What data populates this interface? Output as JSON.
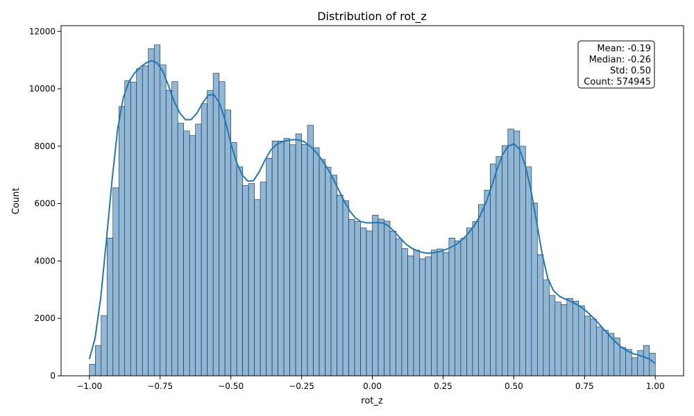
{
  "chart_data": {
    "type": "bar",
    "title": "Distribution of rot_z",
    "xlabel": "rot_z",
    "ylabel": "Count",
    "xlim": [
      -1.1,
      1.1
    ],
    "ylim": [
      0,
      12200
    ],
    "x_ticks": [
      -1.0,
      -0.75,
      -0.5,
      -0.25,
      0.0,
      0.25,
      0.5,
      0.75,
      1.0
    ],
    "x_tick_labels": [
      "−1.00",
      "−0.75",
      "−0.50",
      "−0.25",
      "0.00",
      "0.25",
      "0.50",
      "0.75",
      "1.00"
    ],
    "y_ticks": [
      0,
      2000,
      4000,
      6000,
      8000,
      10000,
      12000
    ],
    "y_tick_labels": [
      "0",
      "2000",
      "4000",
      "6000",
      "8000",
      "10000",
      "12000"
    ],
    "grid": false,
    "bin_start": -1.0,
    "bin_end": 1.0,
    "values": [
      400,
      1050,
      2100,
      4800,
      6550,
      9380,
      10280,
      10230,
      10700,
      10800,
      11400,
      11530,
      10830,
      9950,
      10250,
      8800,
      8530,
      8370,
      8770,
      9480,
      9940,
      10540,
      10250,
      9260,
      8130,
      7280,
      6630,
      6700,
      6140,
      6750,
      7580,
      8180,
      8180,
      8270,
      8050,
      8430,
      8060,
      8730,
      7950,
      7540,
      7270,
      6990,
      6300,
      6100,
      5450,
      5380,
      5150,
      5050,
      5600,
      5460,
      5390,
      5040,
      4780,
      4430,
      4180,
      4380,
      4080,
      4140,
      4380,
      4420,
      4300,
      4800,
      4700,
      4790,
      5150,
      5370,
      5970,
      6470,
      7380,
      7640,
      8020,
      8600,
      8530,
      8000,
      7280,
      6020,
      4220,
      3340,
      2800,
      2570,
      2480,
      2700,
      2600,
      2440,
      2080,
      1980,
      1700,
      1590,
      1480,
      1320,
      990,
      920,
      630,
      880,
      1060,
      790
    ],
    "kde": {
      "x": [
        -1.0,
        -0.98,
        -0.96,
        -0.94,
        -0.92,
        -0.9,
        -0.88,
        -0.86,
        -0.84,
        -0.82,
        -0.8,
        -0.78,
        -0.76,
        -0.74,
        -0.72,
        -0.7,
        -0.68,
        -0.66,
        -0.64,
        -0.62,
        -0.6,
        -0.58,
        -0.56,
        -0.54,
        -0.52,
        -0.5,
        -0.48,
        -0.46,
        -0.44,
        -0.42,
        -0.4,
        -0.38,
        -0.36,
        -0.34,
        -0.32,
        -0.3,
        -0.28,
        -0.26,
        -0.24,
        -0.22,
        -0.2,
        -0.18,
        -0.16,
        -0.14,
        -0.12,
        -0.1,
        -0.08,
        -0.06,
        -0.04,
        -0.02,
        0.0,
        0.02,
        0.04,
        0.06,
        0.08,
        0.1,
        0.12,
        0.14,
        0.16,
        0.18,
        0.2,
        0.22,
        0.24,
        0.26,
        0.28,
        0.3,
        0.32,
        0.34,
        0.36,
        0.38,
        0.4,
        0.42,
        0.44,
        0.46,
        0.48,
        0.5,
        0.52,
        0.54,
        0.56,
        0.58,
        0.6,
        0.62,
        0.64,
        0.66,
        0.68,
        0.7,
        0.72,
        0.74,
        0.76,
        0.78,
        0.8,
        0.82,
        0.84,
        0.86,
        0.88,
        0.9,
        0.92,
        0.94,
        0.96,
        0.98,
        1.0
      ],
      "y": [
        580,
        1300,
        2700,
        4700,
        6800,
        8600,
        9700,
        10250,
        10550,
        10750,
        10900,
        10980,
        10900,
        10600,
        10100,
        9550,
        9150,
        8920,
        8930,
        9150,
        9500,
        9780,
        9800,
        9500,
        8900,
        8100,
        7450,
        7000,
        6780,
        6800,
        7100,
        7500,
        7850,
        8050,
        8150,
        8200,
        8230,
        8220,
        8150,
        8000,
        7800,
        7550,
        7250,
        6900,
        6500,
        6100,
        5750,
        5500,
        5370,
        5330,
        5330,
        5340,
        5320,
        5200,
        5000,
        4780,
        4580,
        4440,
        4350,
        4290,
        4270,
        4290,
        4330,
        4400,
        4490,
        4600,
        4760,
        4970,
        5230,
        5560,
        5990,
        6550,
        7170,
        7700,
        8000,
        8080,
        7900,
        7350,
        6500,
        5400,
        4250,
        3400,
        2970,
        2780,
        2680,
        2600,
        2500,
        2380,
        2220,
        2030,
        1820,
        1600,
        1380,
        1170,
        1000,
        870,
        780,
        720,
        660,
        580,
        420
      ]
    },
    "colors": {
      "bar_fill": "#8fb8d8",
      "bar_edge": "#1f1f1f",
      "kde_line": "#1f77b4"
    },
    "annotation": [
      "Mean: -0.19",
      "Median: -0.26",
      "Std: 0.50",
      "Count: 574945"
    ],
    "annotation_location": "top-right"
  }
}
